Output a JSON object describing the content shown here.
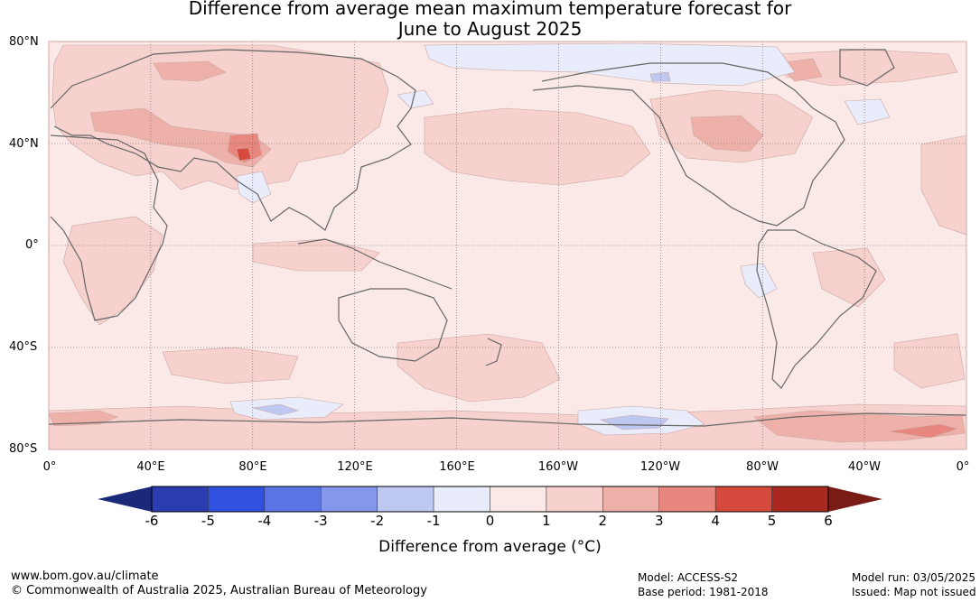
{
  "title": {
    "line1": "Difference from average mean maximum temperature forecast for",
    "line2": "June to August 2025"
  },
  "map": {
    "lat_labels": [
      "80°N",
      "40°N",
      "0°",
      "40°S",
      "80°S"
    ],
    "lon_labels": [
      "0°",
      "40°E",
      "80°E",
      "120°E",
      "160°E",
      "160°W",
      "120°W",
      "80°W",
      "40°W",
      "0°"
    ],
    "colors": {
      "background": "#fbe9e7",
      "land_outline": "#666666",
      "grid": "#555555",
      "anomaly_1_2": "#f6d1cd",
      "anomaly_2_3": "#eeb1aa",
      "anomaly_3_4": "#e8877e",
      "anomaly_4_5": "#d54a3c",
      "anomaly_0_m1": "#e9ecfb",
      "anomaly_m1_m2": "#bfc8f1"
    }
  },
  "colorbar": {
    "ticks": [
      "-6",
      "-5",
      "-4",
      "-3",
      "-2",
      "-1",
      "0",
      "1",
      "2",
      "3",
      "4",
      "5",
      "6"
    ],
    "low_extend_color": "#1b2a78",
    "high_extend_color": "#7a1c16",
    "colors": [
      "#2a3cb0",
      "#3050e0",
      "#5a74e4",
      "#8597ea",
      "#bfc8f1",
      "#e9ecfb",
      "#fbe9e7",
      "#f6d1cd",
      "#eeb1aa",
      "#e8877e",
      "#d54a3c",
      "#a9281f"
    ],
    "label": "Difference from average (°C)"
  },
  "footer": {
    "url": "www.bom.gov.au/climate",
    "copyright": "© Commonwealth of Australia 2025, Australian Bureau of Meteorology",
    "model": "Model: ACCESS-S2",
    "base_period": "Base period: 1981-2018",
    "model_run": "Model run: 03/05/2025",
    "issued": "Issued: Map not issued"
  }
}
